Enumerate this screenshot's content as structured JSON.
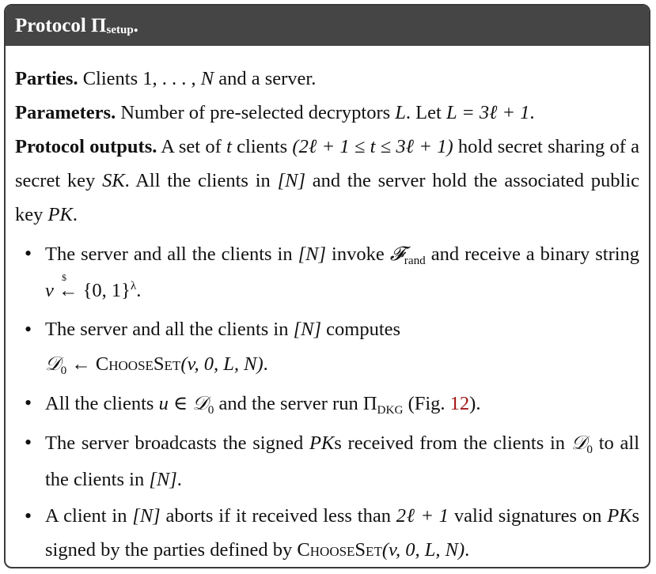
{
  "header": {
    "title_main": "Protocol Π",
    "title_sub": "setup",
    "title_end": "."
  },
  "parties": {
    "label": "Parties.",
    "pre": "Clients 1,",
    "dots": ". . . ,",
    "N": "N",
    "post": "and a server."
  },
  "parameters": {
    "label": "Parameters.",
    "text": "Number of pre-selected decryptors",
    "L": "L",
    "mid": ". Let",
    "eq": "L = 3ℓ + 1",
    "end": "."
  },
  "outputs": {
    "label": "Protocol outputs.",
    "t1": "A set of",
    "t": "t",
    "t2": "clients",
    "range": "(2ℓ + 1 ≤ t ≤ 3ℓ + 1)",
    "t3": "hold secret sharing of a secret key",
    "SK": "SK",
    "t4": ". All the clients in",
    "bN": "[N]",
    "t5": "and the server hold the associated public key",
    "PK": "PK",
    "t6": "."
  },
  "bullets": {
    "b1": {
      "t1": "The server and all the clients in",
      "N": "[N]",
      "t2": "invoke",
      "F": "𝓕",
      "Fsub": "rand",
      "t3": "and receive a binary string",
      "v": "v",
      "arrow": "←",
      "dollar": "$",
      "set": "{0, 1}",
      "lambda": "λ",
      "end": "."
    },
    "b2": {
      "t1": "The server and all the clients in",
      "N": "[N]",
      "t2": "computes",
      "D": "𝒟",
      "Dsub": "0",
      "arrow": "←",
      "fn": "ChooseSet",
      "args": "(v, 0, L, N)",
      "end": "."
    },
    "b3": {
      "t1": "All the clients",
      "u": "u ∈",
      "D": "𝒟",
      "Dsub": "0",
      "t2": "and the server run",
      "pi": "Π",
      "pisub": "DKG",
      "t3": "(Fig.",
      "ref": "12",
      "t4": ")."
    },
    "b4": {
      "t1": "The server broadcasts the signed",
      "PK": "PK",
      "t2": "s received from the clients in",
      "D": "𝒟",
      "Dsub": "0",
      "t3": "to all the clients in",
      "N": "[N]",
      "end": "."
    },
    "b5": {
      "t1": "A client in",
      "N": "[N]",
      "t2": "aborts if it received less than",
      "val": "2ℓ + 1",
      "t3": "valid signatures on",
      "PK": "PK",
      "t4": "s signed by the parties defined by",
      "fn": "ChooseSet",
      "args": "(v, 0, L, N)",
      "end": "."
    }
  }
}
